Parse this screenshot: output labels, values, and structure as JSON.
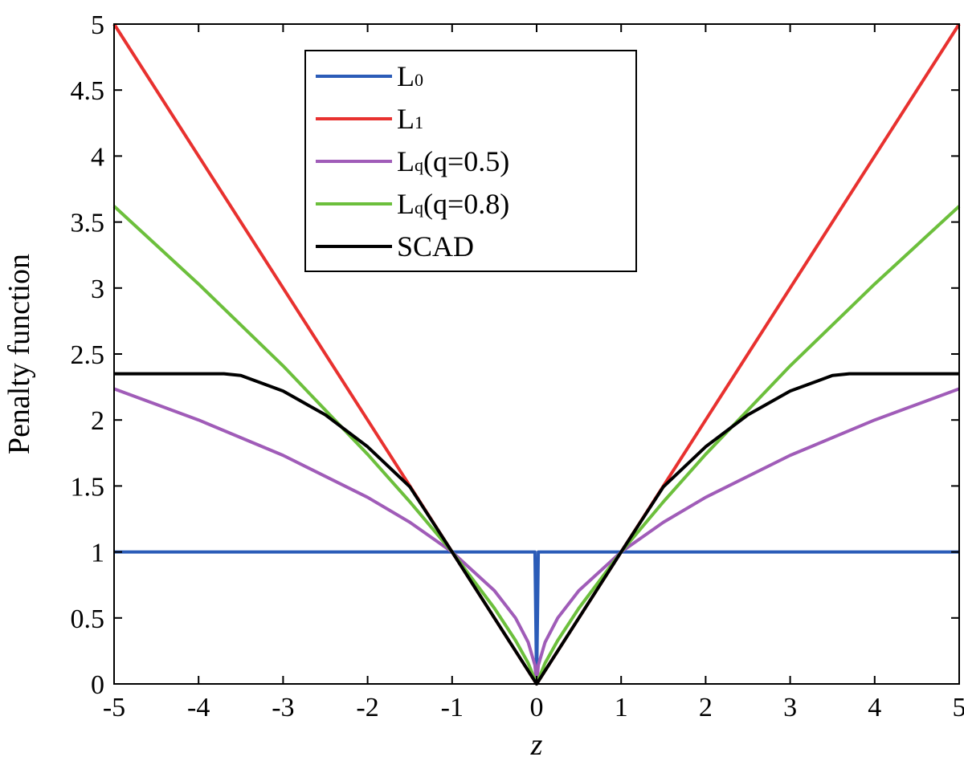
{
  "chart_data": {
    "type": "line",
    "xlabel": "z",
    "ylabel": "Penalty function",
    "xlim": [
      -5,
      5
    ],
    "ylim": [
      0,
      5
    ],
    "xticks": [
      "-5",
      "-4",
      "-3",
      "-2",
      "-1",
      "0",
      "1",
      "2",
      "3",
      "4",
      "5"
    ],
    "yticks": [
      "0",
      "0.5",
      "1",
      "1.5",
      "2",
      "2.5",
      "3",
      "3.5",
      "4",
      "4.5",
      "5"
    ],
    "grid": false,
    "legend_position": "top-left",
    "series": [
      {
        "name": "L0",
        "name_base": "L",
        "name_sub": "0",
        "name_suffix": "",
        "color": "#2b5cb8",
        "x": [
          -5,
          -0.02,
          0,
          0.02,
          5
        ],
        "y": [
          1,
          1,
          0,
          1,
          1
        ]
      },
      {
        "name": "L1",
        "name_base": "L",
        "name_sub": "1",
        "name_suffix": "",
        "color": "#e8312f",
        "x": [
          -5,
          -4,
          -3,
          -2,
          -1,
          0,
          1,
          2,
          3,
          4,
          5
        ],
        "y": [
          5,
          4,
          3,
          2,
          1,
          0,
          1,
          2,
          3,
          4,
          5
        ]
      },
      {
        "name": "Lq(q=0.5)",
        "name_base": "L",
        "name_sub": "q",
        "name_suffix": "(q=0.5)",
        "color": "#a05cb8",
        "x": [
          -5,
          -4,
          -3,
          -2,
          -1.5,
          -1,
          -0.5,
          -0.25,
          -0.1,
          -0.02,
          0,
          0.02,
          0.1,
          0.25,
          0.5,
          1,
          1.5,
          2,
          3,
          4,
          5
        ],
        "y": [
          2.236,
          2,
          1.732,
          1.414,
          1.225,
          1,
          0.707,
          0.5,
          0.316,
          0.141,
          0,
          0.141,
          0.316,
          0.5,
          0.707,
          1,
          1.225,
          1.414,
          1.732,
          2,
          2.236
        ]
      },
      {
        "name": "Lq(q=0.8)",
        "name_base": "L",
        "name_sub": "q",
        "name_suffix": "(q=0.8)",
        "color": "#6cbf3c",
        "x": [
          -5,
          -4,
          -3,
          -2,
          -1.5,
          -1,
          -0.5,
          -0.25,
          -0.1,
          0,
          0.1,
          0.25,
          0.5,
          1,
          1.5,
          2,
          3,
          4,
          5
        ],
        "y": [
          3.62,
          3.03,
          2.41,
          1.74,
          1.38,
          1,
          0.574,
          0.33,
          0.158,
          0,
          0.158,
          0.33,
          0.574,
          1,
          1.38,
          1.74,
          2.41,
          3.03,
          3.62
        ]
      },
      {
        "name": "SCAD",
        "name_base": "SCAD",
        "name_sub": "",
        "name_suffix": "",
        "color": "#000000",
        "x": [
          -5,
          -3.7,
          -3.5,
          -3.0,
          -2.5,
          -2.0,
          -1.5,
          -1,
          0,
          1,
          1.5,
          2.0,
          2.5,
          3.0,
          3.5,
          3.7,
          5
        ],
        "y": [
          2.35,
          2.35,
          2.3374,
          2.2191,
          2.0391,
          1.7973,
          1.4938,
          1,
          0,
          1,
          1.4938,
          1.7973,
          2.0391,
          2.2191,
          2.3374,
          2.35,
          2.35
        ]
      }
    ]
  }
}
